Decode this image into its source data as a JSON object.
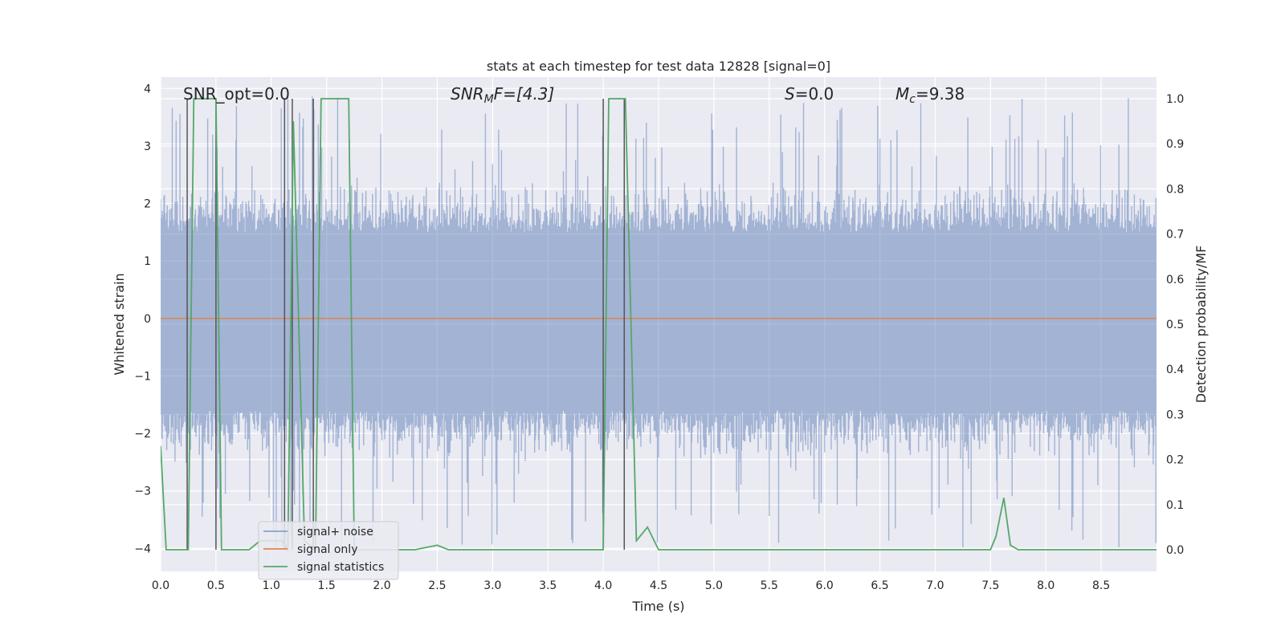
{
  "chart_data": {
    "type": "line",
    "title": "stats at each timestep for test data 12828 [signal=0]",
    "xlabel": "Time (s)",
    "ylabel": "Whitened strain",
    "y2label": "Detection probability/MF",
    "xlim": [
      0,
      9.0
    ],
    "ylim": [
      -4.4,
      4.2
    ],
    "y2lim": [
      -0.048,
      1.048
    ],
    "xticks": [
      "0.0",
      "0.5",
      "1.0",
      "1.5",
      "2.0",
      "2.5",
      "3.0",
      "3.5",
      "4.0",
      "4.5",
      "5.0",
      "5.5",
      "6.0",
      "6.5",
      "7.0",
      "7.5",
      "8.0",
      "8.5"
    ],
    "yticks": [
      "−4",
      "−3",
      "−2",
      "−1",
      "0",
      "1",
      "2",
      "3",
      "4"
    ],
    "y2ticks": [
      "0.0",
      "0.1",
      "0.2",
      "0.3",
      "0.4",
      "0.5",
      "0.6",
      "0.7",
      "0.8",
      "0.9",
      "1.0"
    ],
    "annotations": {
      "snr_opt": "SNR_opt=0.0",
      "snr_mf_main": "SNR",
      "snr_mf_sub": "M",
      "snr_mf_rest": "F=[4.3]",
      "s_main": "S",
      "s_rest": "=0.0",
      "mc_main": "M",
      "mc_sub": "c",
      "mc_rest": "=9.38"
    },
    "legend": {
      "placement": "lower-left",
      "entries": [
        "signal+ noise",
        "signal only",
        "signal statistics"
      ]
    },
    "colors": {
      "noise": "#4c72b0",
      "signal": "#dd8452",
      "stats": "#55a868",
      "vline": "#555555",
      "plot_bg": "#eaeaf2",
      "grid": "#ffffff"
    },
    "series": [
      {
        "name": "signal+ noise",
        "axis": "left",
        "style": "dense-noise",
        "band": [
          -1.6,
          1.5
        ],
        "spike_range": [
          -4.0,
          3.9
        ]
      },
      {
        "name": "signal only",
        "axis": "left",
        "x": [
          0.0,
          9.0
        ],
        "y": [
          0.0,
          0.0
        ]
      },
      {
        "name": "signal statistics",
        "axis": "right",
        "x": [
          0.0,
          0.05,
          0.25,
          0.3,
          0.5,
          0.55,
          0.6,
          0.8,
          0.9,
          1.1,
          1.15,
          1.2,
          1.3,
          1.4,
          1.45,
          1.7,
          1.75,
          2.0,
          2.3,
          2.5,
          2.6,
          4.0,
          4.05,
          4.2,
          4.3,
          4.4,
          4.5,
          7.5,
          7.55,
          7.62,
          7.68,
          7.75,
          9.0
        ],
        "y": [
          0.23,
          0.0,
          0.0,
          1.0,
          1.0,
          0.0,
          0.0,
          0.0,
          0.02,
          0.02,
          0.0,
          0.95,
          0.02,
          0.0,
          1.0,
          1.0,
          0.0,
          0.0,
          0.0,
          0.01,
          0.0,
          0.0,
          1.0,
          1.0,
          0.02,
          0.05,
          0.0,
          0.0,
          0.03,
          0.115,
          0.01,
          0.0,
          0.0
        ]
      }
    ],
    "vertical_markers": [
      0.24,
      0.5,
      1.12,
      1.19,
      1.38,
      4.0,
      4.19
    ]
  }
}
